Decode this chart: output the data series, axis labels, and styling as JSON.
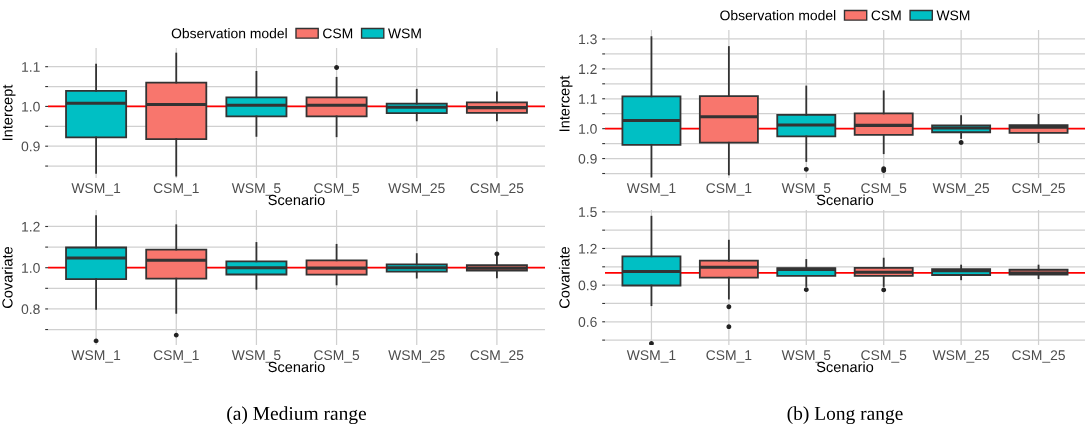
{
  "chart_data": [
    {
      "type": "box",
      "xlabel": "Scenario",
      "ylabel": "Intercept",
      "legend_title": "Observation model",
      "legend": "top",
      "grid": true,
      "categories": [
        "WSM_1",
        "CSM_1",
        "WSM_5",
        "CSM_5",
        "WSM_25",
        "CSM_25"
      ],
      "ylim": [
        0.82,
        1.147
      ],
      "yticks": [
        {
          "value": 0.85,
          "label": null
        },
        0.9,
        {
          "value": 0.95,
          "label": null
        },
        {
          "value": 1.0,
          "label": "1.0"
        },
        {
          "value": 1.05,
          "label": null
        },
        1.1
      ],
      "ref_lines": [
        {
          "axis": "y",
          "value": 1.0,
          "color": "#ff0000"
        }
      ],
      "series": [
        {
          "name": "CSM",
          "color": "#f8766d",
          "boxes": [
            null,
            {
              "low": 0.826,
              "q1": 0.918,
              "median": 1.005,
              "q3": 1.06,
              "high": 1.133
            },
            null,
            {
              "low": 0.925,
              "q1": 0.975,
              "median": 1.003,
              "q3": 1.023,
              "high": 1.072,
              "outliers": [
                1.098
              ]
            },
            null,
            {
              "low": 0.965,
              "q1": 0.984,
              "median": 0.997,
              "q3": 1.01,
              "high": 1.035
            }
          ]
        },
        {
          "name": "WSM",
          "color": "#00bfc4",
          "boxes": [
            {
              "low": 0.833,
              "q1": 0.922,
              "median": 1.008,
              "q3": 1.039,
              "high": 1.105
            },
            null,
            {
              "low": 0.926,
              "q1": 0.975,
              "median": 1.003,
              "q3": 1.023,
              "high": 1.087
            },
            null,
            {
              "low": 0.965,
              "q1": 0.983,
              "median": 0.998,
              "q3": 1.007,
              "high": 1.042
            },
            null
          ]
        }
      ]
    },
    {
      "type": "box",
      "xlabel": "Scenario",
      "ylabel": "Intercept",
      "legend_title": "Observation model",
      "legend": "top",
      "grid": true,
      "categories": [
        "WSM_1",
        "CSM_1",
        "WSM_5",
        "CSM_5",
        "WSM_25",
        "CSM_25"
      ],
      "ylim": [
        0.835,
        1.33
      ],
      "yticks": [
        {
          "value": 0.85,
          "label": null
        },
        0.9,
        {
          "value": 0.95,
          "label": null
        },
        {
          "value": 1.0,
          "label": "1.0"
        },
        {
          "value": 1.05,
          "label": null
        },
        1.1,
        {
          "value": 1.15,
          "label": null
        },
        1.2,
        {
          "value": 1.25,
          "label": null
        },
        1.3
      ],
      "ref_lines": [
        {
          "axis": "y",
          "value": 1.0,
          "color": "#ff0000"
        }
      ],
      "series": [
        {
          "name": "CSM",
          "color": "#f8766d",
          "boxes": [
            null,
            {
              "low": 0.847,
              "q1": 0.953,
              "median": 1.04,
              "q3": 1.109,
              "high": 1.273
            },
            null,
            {
              "low": 0.918,
              "q1": 0.979,
              "median": 1.011,
              "q3": 1.051,
              "high": 1.125,
              "outliers": [
                0.866,
                0.86
              ]
            },
            null,
            {
              "low": 0.955,
              "q1": 0.986,
              "median": 1.005,
              "q3": 1.012,
              "high": 1.046
            }
          ]
        },
        {
          "name": "WSM",
          "color": "#00bfc4",
          "boxes": [
            {
              "low": 0.84,
              "q1": 0.946,
              "median": 1.027,
              "q3": 1.108,
              "high": 1.306
            },
            null,
            {
              "low": 0.892,
              "q1": 0.974,
              "median": 1.012,
              "q3": 1.046,
              "high": 1.141,
              "outliers": [
                0.864
              ]
            },
            null,
            {
              "low": 0.969,
              "q1": 0.988,
              "median": 1.002,
              "q3": 1.011,
              "high": 1.042,
              "outliers": [
                0.954
              ]
            },
            null
          ]
        }
      ]
    },
    {
      "type": "box",
      "xlabel": "Scenario",
      "ylabel": "Covariate",
      "grid": true,
      "annotations": [
        "(a) Medium range"
      ],
      "categories": [
        "WSM_1",
        "CSM_1",
        "WSM_5",
        "CSM_5",
        "WSM_25",
        "CSM_25"
      ],
      "ylim": [
        0.625,
        1.28
      ],
      "yticks": [
        {
          "value": 0.7,
          "label": null
        },
        0.8,
        {
          "value": 0.9,
          "label": null
        },
        {
          "value": 1.0,
          "label": "1.0"
        },
        {
          "value": 1.1,
          "label": null
        },
        1.2
      ],
      "ref_lines": [
        {
          "axis": "y",
          "value": 1.0,
          "color": "#ff0000"
        }
      ],
      "series": [
        {
          "color": "#f8766d",
          "boxes": [
            null,
            {
              "low": 0.781,
              "q1": 0.947,
              "median": 1.036,
              "q3": 1.088,
              "high": 1.206,
              "outliers": [
                0.673
              ]
            },
            null,
            {
              "low": 0.919,
              "q1": 0.966,
              "median": 0.998,
              "q3": 1.036,
              "high": 1.111
            },
            null,
            {
              "low": 0.953,
              "q1": 0.986,
              "median": 0.998,
              "q3": 1.013,
              "high": 1.053,
              "outliers": [
                1.067
              ]
            }
          ]
        },
        {
          "color": "#00bfc4",
          "boxes": [
            {
              "low": 0.8,
              "q1": 0.945,
              "median": 1.047,
              "q3": 1.098,
              "high": 1.25,
              "outliers": [
                0.645
              ]
            },
            null,
            {
              "low": 0.898,
              "q1": 0.967,
              "median": 1.0,
              "q3": 1.031,
              "high": 1.12
            },
            null,
            {
              "low": 0.952,
              "q1": 0.981,
              "median": 1.0,
              "q3": 1.016,
              "high": 1.066
            },
            null
          ]
        }
      ]
    },
    {
      "type": "box",
      "xlabel": "Scenario",
      "ylabel": "Covariate",
      "grid": true,
      "annotations": [
        "(b) Long range"
      ],
      "categories": [
        "WSM_1",
        "CSM_1",
        "WSM_5",
        "CSM_5",
        "WSM_25",
        "CSM_25"
      ],
      "ylim": [
        0.41,
        1.515
      ],
      "yticks": [
        {
          "value": 0.45,
          "label": null
        },
        0.6,
        {
          "value": 0.75,
          "label": null
        },
        0.9,
        {
          "value": 1.05,
          "label": null
        },
        1.2,
        {
          "value": 1.35,
          "label": null
        },
        1.5
      ],
      "ref_lines": [
        {
          "axis": "y",
          "value": 1.0,
          "color": "#ff0000"
        }
      ],
      "series": [
        {
          "color": "#f8766d",
          "boxes": [
            null,
            {
              "low": 0.79,
              "q1": 0.961,
              "median": 1.047,
              "q3": 1.1,
              "high": 1.264,
              "outliers": [
                0.723,
                0.56
              ]
            },
            null,
            {
              "low": 0.893,
              "q1": 0.976,
              "median": 1.005,
              "q3": 1.042,
              "high": 1.117,
              "outliers": [
                0.861
              ]
            },
            null,
            {
              "low": 0.957,
              "q1": 0.986,
              "median": 0.999,
              "q3": 1.026,
              "high": 1.06
            }
          ]
        },
        {
          "color": "#00bfc4",
          "boxes": [
            {
              "low": 0.736,
              "q1": 0.897,
              "median": 1.012,
              "q3": 1.136,
              "high": 1.46,
              "outliers": [
                0.422
              ]
            },
            null,
            {
              "low": 0.893,
              "q1": 0.976,
              "median": 1.029,
              "q3": 1.039,
              "high": 1.106,
              "outliers": [
                0.863
              ]
            },
            null,
            {
              "low": 0.948,
              "q1": 0.983,
              "median": 1.018,
              "q3": 1.031,
              "high": 1.06
            },
            null
          ]
        }
      ]
    }
  ]
}
